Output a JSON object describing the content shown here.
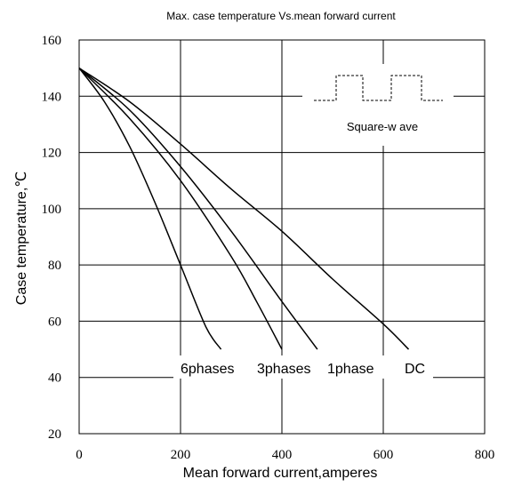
{
  "chart_data": {
    "type": "line",
    "title": "Max. case temperature  Vs.mean  forward  current",
    "xlabel": "Mean  forward  current,amperes",
    "ylabel": "Case temperature,℃",
    "xlim": [
      0,
      800
    ],
    "ylim": [
      20,
      160
    ],
    "xticks": [
      "0",
      "200",
      "400",
      "600",
      "800"
    ],
    "yticks": [
      "20",
      "40",
      "60",
      "80",
      "100",
      "120",
      "140",
      "160"
    ],
    "grid": true,
    "series": [
      {
        "name": "6phases",
        "x": [
          0,
          50,
          100,
          150,
          200,
          250,
          280
        ],
        "y": [
          150,
          138,
          122,
          102,
          80,
          58,
          50
        ]
      },
      {
        "name": "3phases",
        "x": [
          0,
          100,
          200,
          300,
          350,
          400
        ],
        "y": [
          150,
          132,
          110,
          83,
          67,
          50
        ]
      },
      {
        "name": "1phase",
        "x": [
          0,
          100,
          200,
          300,
          400,
          470
        ],
        "y": [
          150,
          135,
          115,
          92,
          67,
          50
        ]
      },
      {
        "name": "DC",
        "x": [
          0,
          100,
          200,
          300,
          400,
          500,
          600,
          650
        ],
        "y": [
          150,
          138,
          123,
          107,
          92,
          75,
          59,
          50
        ]
      }
    ],
    "inset_label": "Square-w ave",
    "colors": {
      "line": "#000000",
      "grid": "#000000",
      "background": "#ffffff"
    }
  }
}
